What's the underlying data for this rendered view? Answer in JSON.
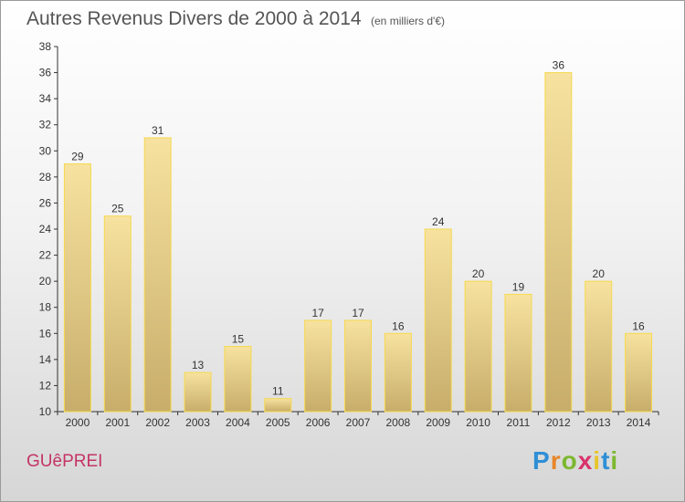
{
  "title": "Autres Revenus Divers de 2000 à 2014",
  "subtitle": "(en milliers d'€)",
  "commune": "GUêPREI",
  "logo": {
    "letters": [
      "P",
      "r",
      "o",
      "x",
      "i",
      "t",
      "i"
    ],
    "colors": [
      "#2e8fd6",
      "#e8862a",
      "#7cb82f",
      "#d8336b",
      "#e8c42a",
      "#2e8fd6",
      "#7cb82f"
    ]
  },
  "colors": {
    "bar_fill_top": "#f7e2a0",
    "bar_fill_bottom": "#c8ad6a",
    "bar_stroke": "#f6d94e",
    "title": "#555555",
    "commune": "#c43464"
  },
  "chart_data": {
    "type": "bar",
    "categories": [
      "2000",
      "2001",
      "2002",
      "2003",
      "2004",
      "2005",
      "2006",
      "2007",
      "2008",
      "2009",
      "2010",
      "2011",
      "2012",
      "2013",
      "2014"
    ],
    "values": [
      29,
      25,
      31,
      13,
      15,
      11,
      17,
      17,
      16,
      24,
      20,
      19,
      36,
      20,
      16
    ],
    "title": "Autres Revenus Divers de 2000 à 2014",
    "ylim": [
      10,
      38
    ],
    "yticks": [
      10,
      12,
      14,
      16,
      18,
      20,
      22,
      24,
      26,
      28,
      30,
      32,
      34,
      36,
      38
    ],
    "grid": false,
    "legend": "none"
  }
}
